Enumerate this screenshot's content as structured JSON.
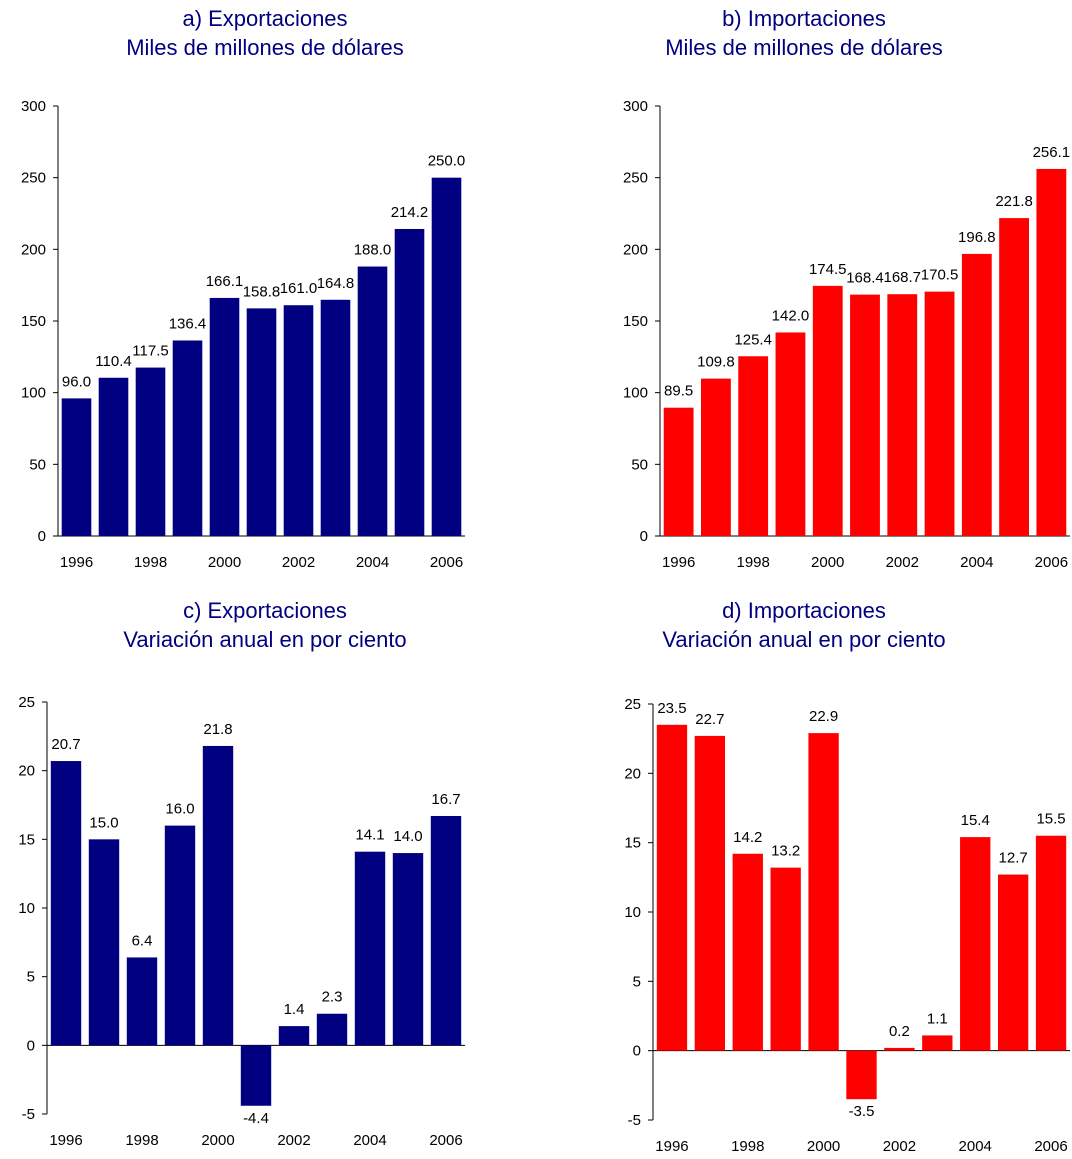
{
  "chart_data": [
    {
      "type": "bar",
      "title": "a) Exportaciones",
      "subtitle": "Miles de millones de dólares",
      "categories": [
        "1996",
        "1997",
        "1998",
        "1999",
        "2000",
        "2001",
        "2002",
        "2003",
        "2004",
        "2005",
        "2006"
      ],
      "values": [
        96.0,
        110.4,
        117.5,
        136.4,
        166.1,
        158.8,
        161.0,
        164.8,
        188.0,
        214.2,
        250.0
      ],
      "data_labels": [
        "96.0",
        "110.4",
        "117.5",
        "136.4",
        "166.1",
        "158.8",
        "161.0",
        "164.8",
        "188.0",
        "214.2",
        "250.0"
      ],
      "x_tick_labels": [
        "1996",
        "",
        "1998",
        "",
        "2000",
        "",
        "2002",
        "",
        "2004",
        "",
        "2006"
      ],
      "y_ticks": [
        0,
        50,
        100,
        150,
        200,
        250,
        300
      ],
      "ylim": [
        0,
        300
      ],
      "color": "#000080",
      "grid": false,
      "legend": "none"
    },
    {
      "type": "bar",
      "title": "b) Importaciones",
      "subtitle": "Miles de millones de dólares",
      "categories": [
        "1996",
        "1997",
        "1998",
        "1999",
        "2000",
        "2001",
        "2002",
        "2003",
        "2004",
        "2005",
        "2006"
      ],
      "values": [
        89.5,
        109.8,
        125.4,
        142.0,
        174.5,
        168.4,
        168.7,
        170.5,
        196.8,
        221.8,
        256.1
      ],
      "data_labels": [
        "89.5",
        "109.8",
        "125.4",
        "142.0",
        "174.5",
        "168.4",
        "168.7",
        "170.5",
        "196.8",
        "221.8",
        "256.1"
      ],
      "x_tick_labels": [
        "1996",
        "",
        "1998",
        "",
        "2000",
        "",
        "2002",
        "",
        "2004",
        "",
        "2006"
      ],
      "y_ticks": [
        0,
        50,
        100,
        150,
        200,
        250,
        300
      ],
      "ylim": [
        0,
        300
      ],
      "color": "#ff0000",
      "grid": false,
      "legend": "none"
    },
    {
      "type": "bar",
      "title": "c) Exportaciones",
      "subtitle": "Variación anual en por ciento",
      "categories": [
        "1996",
        "1997",
        "1998",
        "1999",
        "2000",
        "2001",
        "2002",
        "2003",
        "2004",
        "2005",
        "2006"
      ],
      "values": [
        20.7,
        15.0,
        6.4,
        16.0,
        21.8,
        -4.4,
        1.4,
        2.3,
        14.1,
        14.0,
        16.7
      ],
      "data_labels": [
        "20.7",
        "15.0",
        "6.4",
        "16.0",
        "21.8",
        "-4.4",
        "1.4",
        "2.3",
        "14.1",
        "14.0",
        "16.7"
      ],
      "x_tick_labels": [
        "1996",
        "",
        "1998",
        "",
        "2000",
        "",
        "2002",
        "",
        "2004",
        "",
        "2006"
      ],
      "y_ticks": [
        -5,
        0,
        5,
        10,
        15,
        20,
        25
      ],
      "ylim": [
        -5,
        25
      ],
      "color": "#000080",
      "grid": false,
      "legend": "none"
    },
    {
      "type": "bar",
      "title": "d) Importaciones",
      "subtitle": "Variación anual en por ciento",
      "categories": [
        "1996",
        "1997",
        "1998",
        "1999",
        "2000",
        "2001",
        "2002",
        "2003",
        "2004",
        "2005",
        "2006"
      ],
      "values": [
        23.5,
        22.7,
        14.2,
        13.2,
        22.9,
        -3.5,
        0.2,
        1.1,
        15.4,
        12.7,
        15.5
      ],
      "data_labels": [
        "23.5",
        "22.7",
        "14.2",
        "13.2",
        "22.9",
        "-3.5",
        "0.2",
        "1.1",
        "15.4",
        "12.7",
        "15.5"
      ],
      "x_tick_labels": [
        "1996",
        "",
        "1998",
        "",
        "2000",
        "",
        "2002",
        "",
        "2004",
        "",
        "2006"
      ],
      "y_ticks": [
        -5,
        0,
        5,
        10,
        15,
        20,
        25
      ],
      "ylim": [
        -5,
        25
      ],
      "color": "#ff0000",
      "grid": false,
      "legend": "none"
    }
  ]
}
